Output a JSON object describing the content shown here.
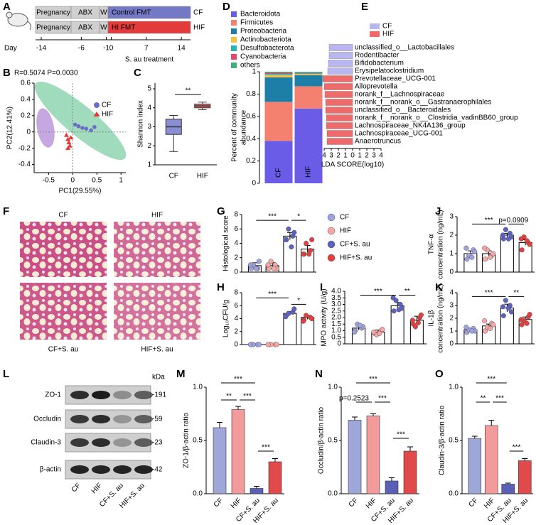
{
  "panel_labels": [
    "A",
    "B",
    "C",
    "D",
    "E",
    "F",
    "G",
    "H",
    "I",
    "J",
    "K",
    "L",
    "M",
    "N",
    "O"
  ],
  "timeline": {
    "rows": [
      {
        "segments": [
          "Pregnancy",
          "ABX",
          "W",
          "Control FMT"
        ],
        "label": "CF"
      },
      {
        "segments": [
          "Pregnancy",
          "ABX",
          "W",
          "HI FMT"
        ],
        "label": "HIF"
      }
    ],
    "day_label": "Day",
    "days": [
      -14,
      -6,
      -1,
      0,
      7,
      14
    ],
    "treatment": "S. au treatment"
  },
  "histology": {
    "labels": [
      "CF",
      "HIF",
      "CF+S. au",
      "HIF+S. au"
    ]
  },
  "western_blot": {
    "proteins": [
      "ZO-1",
      "Occludin",
      "Claudin-3",
      "β-actin"
    ],
    "kda_title": "kDa",
    "kda": [
      "-191",
      "-59",
      "-23",
      "-42"
    ],
    "lanes": [
      "CF",
      "HIF",
      "CF+S. au",
      "HIF+S. au"
    ]
  },
  "chart_data": [
    {
      "type": "scatter",
      "title": "R=0.5074 P=0.0030",
      "xlabel": "PC1(29.55%)",
      "ylabel": "PC2(12.41%)",
      "xlim": [
        -0.8,
        1.1
      ],
      "ylim": [
        -0.5,
        0.6
      ],
      "xticks": [
        -0.5,
        0,
        0.5,
        1
      ],
      "yticks": [
        -0.4,
        -0.2,
        0,
        0.2,
        0.4,
        0.6
      ],
      "series": [
        {
          "name": "CF",
          "color": "#6a6fc4",
          "marker": "circle",
          "x": [
            0.05,
            0.12,
            0.2,
            0.28,
            0.38,
            0.45
          ],
          "y": [
            0.09,
            0.07,
            0.05,
            0.04,
            0.02,
            0.06
          ]
        },
        {
          "name": "HIF",
          "color": "#e53935",
          "marker": "triangle",
          "x": [
            -0.13,
            -0.1,
            -0.08,
            -0.06,
            -0.1,
            -0.04
          ],
          "y": [
            -0.04,
            -0.09,
            -0.13,
            -0.17,
            -0.2,
            -0.07
          ]
        }
      ]
    },
    {
      "type": "box",
      "ylabel": "Shannon index",
      "ylim": [
        1,
        5.3
      ],
      "yticks": [
        1,
        2,
        3,
        4,
        5
      ],
      "categories": [
        "CF",
        "HIF"
      ],
      "colors": [
        "#8a8fd3",
        "#ea6f6f"
      ],
      "min": [
        1.7,
        3.9
      ],
      "q1": [
        2.6,
        4.0
      ],
      "median": [
        3.0,
        4.1
      ],
      "q3": [
        3.4,
        4.2
      ],
      "max": [
        3.6,
        4.3
      ],
      "annotations": [
        "**"
      ]
    },
    {
      "type": "stacked_bar",
      "ylabel": [
        "Percent of community",
        "abundance"
      ],
      "ylim": [
        0,
        1
      ],
      "yticks": [
        0,
        0.2,
        0.4,
        0.6,
        0.8,
        1
      ],
      "categories": [
        "CF",
        "HIF"
      ],
      "series": [
        {
          "name": "Bacteroidota",
          "color": "#6a5ce6",
          "values": [
            0.38,
            0.67
          ]
        },
        {
          "name": "Firmicutes",
          "color": "#f4806f",
          "values": [
            0.35,
            0.2
          ]
        },
        {
          "name": "Proteobacteria",
          "color": "#1d7fa8",
          "values": [
            0.22,
            0.1
          ]
        },
        {
          "name": "Actinobacteriota",
          "color": "#f5c242",
          "values": [
            0.02,
            0.01
          ]
        },
        {
          "name": "Desulfobacterota",
          "color": "#2bb3b3",
          "values": [
            0.01,
            0.01
          ]
        },
        {
          "name": "Cyanobacteria",
          "color": "#e8456d",
          "values": [
            0.01,
            0.005
          ]
        },
        {
          "name": "others",
          "color": "#3fae7a",
          "values": [
            0.01,
            0.005
          ]
        }
      ]
    },
    {
      "type": "lda",
      "xlabel": "LDA SCORE(log10)",
      "xlim": [
        -4,
        4
      ],
      "xticks": [
        {
          "value": -4,
          "label": "4"
        },
        {
          "value": -3,
          "label": "3"
        },
        {
          "value": -2,
          "label": "2"
        },
        {
          "value": -1,
          "label": "1"
        },
        0,
        1,
        2,
        3,
        4
      ],
      "categories": [
        "unclassified_o__Lactobacillales",
        "Rodentibacter",
        "Bifidobacterium",
        "Erysipelatoclostridium",
        "Prevotellaceae_UCG-001",
        "Alloprevotella",
        "norank_f__Lachnospiraceae",
        "norank_f__norank_o__Gastranaerophilales",
        "unclassified_o__Bacteroidales",
        "norank_f__norank_o__Clostridia_vadinBB60_group",
        "Lachnospiraceae_NK4A136_group",
        "Lachnospiraceae_UCG-001",
        "Anaerotruncus"
      ],
      "series": [
        {
          "name": "CF",
          "color": "#b9b6f2",
          "values": [
            -3.3,
            -3.3,
            -3.4,
            -3.5,
            null,
            null,
            null,
            null,
            null,
            null,
            null,
            null,
            null
          ]
        },
        {
          "name": "HIF",
          "color": "#ef6b6b",
          "values": [
            null,
            null,
            null,
            null,
            -4.2,
            -4.0,
            -3.9,
            -3.8,
            -3.8,
            -3.7,
            -3.7,
            -3.6,
            -3.6
          ]
        }
      ]
    },
    {
      "type": "dotbar",
      "ylabel": "Histological score",
      "ylim": [
        0,
        8
      ],
      "yticks": [
        0,
        2,
        4,
        6,
        8
      ],
      "legend": [
        "CF",
        "HIF",
        "CF+S. au",
        "HIF+S. au"
      ],
      "colors": [
        "#9ea3e0",
        "#f7a5a5",
        "#5c60c0",
        "#e53e3e"
      ],
      "values": [
        0.9,
        0.9,
        5,
        3.2
      ],
      "errors": [
        0.4,
        0.4,
        0.5,
        0.5
      ],
      "points": [
        [
          0.5,
          0.5,
          1,
          1.5,
          1,
          0.5
        ],
        [
          0.5,
          1,
          1.5,
          0.5,
          1,
          0.5
        ],
        [
          4.5,
          5,
          6,
          5.5,
          4.5,
          3.5
        ],
        [
          2.5,
          3,
          4,
          4.5,
          2.5,
          2.5
        ]
      ],
      "annotations": [
        "***",
        "*"
      ]
    },
    {
      "type": "dotbar",
      "ylabel": "Log₁₀CFU/g",
      "ylim": [
        0,
        8
      ],
      "yticks": [
        0,
        2,
        4,
        6,
        8
      ],
      "colors": [
        "#9ea3e0",
        "#f7a5a5",
        "#5c60c0",
        "#e53e3e"
      ],
      "values": [
        0,
        0,
        4.8,
        4.2
      ],
      "errors": [
        0,
        0,
        0.3,
        0.3
      ],
      "points": [
        [
          0,
          0,
          0,
          0,
          0
        ],
        [
          0,
          0,
          0,
          0,
          0
        ],
        [
          4.5,
          5,
          4.8,
          5.5,
          4.3
        ],
        [
          3.8,
          4.2,
          4.5,
          4.0,
          3.6
        ]
      ],
      "annotations": [
        "***",
        "*"
      ]
    },
    {
      "type": "dotbar",
      "ylabel": "MPO activity (U/g)",
      "ylim": [
        0,
        4
      ],
      "yticks": [
        0,
        0.5,
        {
          "value": 1,
          "label": "1.0"
        },
        1.5,
        {
          "value": 2,
          "label": "2.0"
        },
        2.5,
        {
          "value": 3,
          "label": "3.0"
        },
        3.5,
        {
          "value": 4,
          "label": "4.0"
        }
      ],
      "colors": [
        "#9ea3e0",
        "#f7a5a5",
        "#5c60c0",
        "#e53e3e"
      ],
      "values": [
        1.2,
        0.9,
        2.9,
        1.8
      ],
      "errors": [
        0.15,
        0.15,
        0.25,
        0.3
      ],
      "points": [
        [
          1.0,
          1.2,
          1.5,
          1.3,
          0.9,
          1.4
        ],
        [
          0.8,
          1.0,
          0.7,
          1.1,
          0.9,
          0.8
        ],
        [
          2.5,
          3.0,
          3.3,
          2.7,
          3.5,
          2.6
        ],
        [
          1.5,
          2.0,
          1.3,
          2.2,
          1.8,
          1.6
        ]
      ],
      "annotations": [
        "***",
        "**"
      ]
    },
    {
      "type": "dotbar",
      "ylabel": [
        "TNF-α",
        "concentration (ng/mL)"
      ],
      "ylim": [
        0,
        3
      ],
      "yticks": [
        0,
        1,
        2,
        3
      ],
      "colors": [
        "#9ea3e0",
        "#f7a5a5",
        "#5c60c0",
        "#e53e3e"
      ],
      "values": [
        1.0,
        1.0,
        2.0,
        1.6
      ],
      "errors": [
        0.15,
        0.15,
        0.1,
        0.15
      ],
      "points": [
        [
          0.7,
          1.2,
          0.9,
          1.1,
          1.3,
          0.8
        ],
        [
          0.7,
          0.9,
          1.2,
          1.0,
          1.3,
          0.8
        ],
        [
          1.8,
          2.1,
          2.3,
          1.9,
          2.0,
          1.8
        ],
        [
          1.2,
          1.6,
          1.9,
          1.5,
          1.8,
          1.7
        ]
      ],
      "annotations": [
        "***",
        "p=0.0909"
      ]
    },
    {
      "type": "dotbar",
      "ylabel": [
        "IL-1β",
        "concentration (ng/mL)"
      ],
      "ylim": [
        0,
        4
      ],
      "yticks": [
        0,
        1,
        2,
        3,
        4
      ],
      "colors": [
        "#9ea3e0",
        "#f7a5a5",
        "#5c60c0",
        "#e53e3e"
      ],
      "values": [
        1.1,
        1.4,
        2.8,
        1.9
      ],
      "errors": [
        0.1,
        0.15,
        0.3,
        0.2
      ],
      "points": [
        [
          0.9,
          1.2,
          1.1,
          1.0,
          1.3,
          1.0
        ],
        [
          1.0,
          1.6,
          1.3,
          1.5,
          1.8,
          1.2
        ],
        [
          2.2,
          3.0,
          3.4,
          2.5,
          2.9,
          2.8
        ],
        [
          1.5,
          2.1,
          1.8,
          2.3,
          1.9,
          1.6
        ]
      ],
      "annotations": [
        "***",
        "**"
      ]
    },
    {
      "type": "bar",
      "ylabel": "ZO-1/β-actin ratio",
      "ylim": [
        0,
        1
      ],
      "yticks": [
        {
          "value": 0,
          "label": "0.0"
        },
        0.5,
        {
          "value": 1,
          "label": "1.0"
        }
      ],
      "categories": [
        "CF",
        "HIF",
        "CF+S. au",
        "HIF+S. au"
      ],
      "colors": [
        "#9fa6d8",
        "#f39a9a",
        "#5b5fb5",
        "#e04a4a"
      ],
      "values": [
        0.62,
        0.79,
        0.05,
        0.3
      ],
      "errors": [
        0.05,
        0.03,
        0.02,
        0.03
      ],
      "annotations": [
        "***",
        "**",
        "***",
        "***"
      ]
    },
    {
      "type": "bar",
      "ylabel": "Occludin/β-actin ratio",
      "ylim": [
        0,
        1
      ],
      "yticks": [
        {
          "value": 0,
          "label": "0.0"
        },
        0.5,
        {
          "value": 1,
          "label": "1.0"
        }
      ],
      "categories": [
        "CF",
        "HIF",
        "CF+S. au",
        "HIF+S. au"
      ],
      "colors": [
        "#9fa6d8",
        "#f39a9a",
        "#5b5fb5",
        "#e04a4a"
      ],
      "values": [
        0.69,
        0.73,
        0.12,
        0.4
      ],
      "errors": [
        0.03,
        0.02,
        0.03,
        0.04
      ],
      "annotations": [
        "***",
        "p=0.2523",
        "***",
        "***"
      ]
    },
    {
      "type": "bar",
      "ylabel": "Claudin-3/β-actin ratio",
      "ylim": [
        0,
        1
      ],
      "yticks": [
        {
          "value": 0,
          "label": "0.0"
        },
        0.5,
        {
          "value": 1,
          "label": "1.0"
        }
      ],
      "categories": [
        "CF",
        "HIF",
        "CF+S. au",
        "HIF+S. au"
      ],
      "colors": [
        "#9fa6d8",
        "#f39a9a",
        "#5b5fb5",
        "#e04a4a"
      ],
      "values": [
        0.52,
        0.64,
        0.09,
        0.31
      ],
      "errors": [
        0.02,
        0.05,
        0.01,
        0.02
      ],
      "annotations": [
        "***",
        "**",
        "***",
        "***"
      ]
    }
  ]
}
